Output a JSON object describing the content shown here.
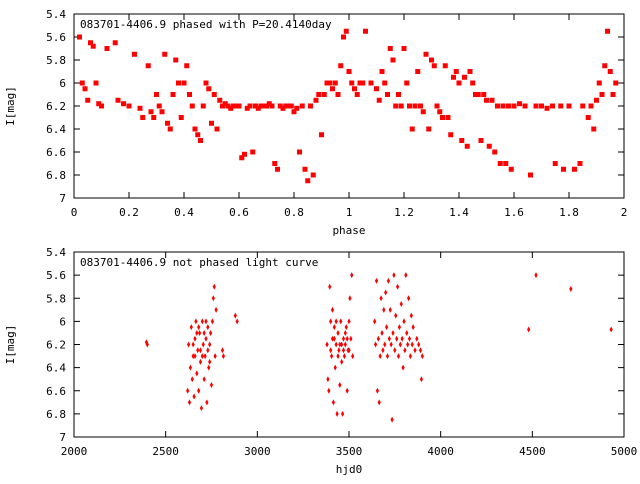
{
  "chart_data": [
    {
      "type": "scatter",
      "title": "083701-4406.9 phased with P=20.4140day",
      "xlabel": "phase",
      "ylabel": "I[mag]",
      "xlim": [
        0,
        2
      ],
      "ylim": [
        5.4,
        7.0
      ],
      "y_inverted": true,
      "xticks": [
        0,
        0.2,
        0.4,
        0.6,
        0.8,
        1,
        1.2,
        1.4,
        1.6,
        1.8,
        2
      ],
      "xtick_labels": [
        "0",
        "0.2",
        "0.4",
        "0.6",
        "0.8",
        "1",
        "1.2",
        "1.4",
        "1.6",
        "1.8",
        "2"
      ],
      "yticks": [
        5.4,
        5.6,
        5.8,
        6.0,
        6.2,
        6.4,
        6.6,
        6.8,
        7.0
      ],
      "ytick_labels": [
        "5.4",
        "5.6",
        "5.8",
        "6",
        "6.2",
        "6.4",
        "6.6",
        "6.8",
        "7"
      ],
      "grid": false,
      "marker_color": "#ff0000",
      "marker": "square",
      "points": [
        [
          0.02,
          5.6
        ],
        [
          0.03,
          6.0
        ],
        [
          0.04,
          6.05
        ],
        [
          0.05,
          6.15
        ],
        [
          0.06,
          5.65
        ],
        [
          0.07,
          5.68
        ],
        [
          0.08,
          6.0
        ],
        [
          0.09,
          6.18
        ],
        [
          0.1,
          6.2
        ],
        [
          0.12,
          5.7
        ],
        [
          0.15,
          5.65
        ],
        [
          0.16,
          6.15
        ],
        [
          0.18,
          6.18
        ],
        [
          0.2,
          6.2
        ],
        [
          0.22,
          5.75
        ],
        [
          0.24,
          6.22
        ],
        [
          0.25,
          6.3
        ],
        [
          0.27,
          5.85
        ],
        [
          0.28,
          6.25
        ],
        [
          0.29,
          6.3
        ],
        [
          0.3,
          6.1
        ],
        [
          0.31,
          6.2
        ],
        [
          0.32,
          6.25
        ],
        [
          0.33,
          5.75
        ],
        [
          0.34,
          6.35
        ],
        [
          0.35,
          6.4
        ],
        [
          0.36,
          6.1
        ],
        [
          0.37,
          5.8
        ],
        [
          0.38,
          6.0
        ],
        [
          0.39,
          6.3
        ],
        [
          0.4,
          6.0
        ],
        [
          0.41,
          5.85
        ],
        [
          0.42,
          6.1
        ],
        [
          0.43,
          6.2
        ],
        [
          0.44,
          6.4
        ],
        [
          0.45,
          6.45
        ],
        [
          0.46,
          6.5
        ],
        [
          0.47,
          6.2
        ],
        [
          0.48,
          6.0
        ],
        [
          0.49,
          6.05
        ],
        [
          0.5,
          6.35
        ],
        [
          0.51,
          6.1
        ],
        [
          0.52,
          6.4
        ],
        [
          0.53,
          6.15
        ],
        [
          0.54,
          6.2
        ],
        [
          0.55,
          6.18
        ],
        [
          0.56,
          6.2
        ],
        [
          0.57,
          6.22
        ],
        [
          0.58,
          6.2
        ],
        [
          0.59,
          6.2
        ],
        [
          0.6,
          6.2
        ],
        [
          0.61,
          6.65
        ],
        [
          0.62,
          6.62
        ],
        [
          0.63,
          6.22
        ],
        [
          0.64,
          6.2
        ],
        [
          0.65,
          6.6
        ],
        [
          0.66,
          6.2
        ],
        [
          0.67,
          6.22
        ],
        [
          0.68,
          6.2
        ],
        [
          0.69,
          6.2
        ],
        [
          0.7,
          6.2
        ],
        [
          0.71,
          6.18
        ],
        [
          0.72,
          6.2
        ],
        [
          0.73,
          6.7
        ],
        [
          0.74,
          6.75
        ],
        [
          0.75,
          6.2
        ],
        [
          0.76,
          6.22
        ],
        [
          0.77,
          6.2
        ],
        [
          0.78,
          6.2
        ],
        [
          0.79,
          6.2
        ],
        [
          0.8,
          6.25
        ],
        [
          0.81,
          6.22
        ],
        [
          0.82,
          6.6
        ],
        [
          0.83,
          6.2
        ],
        [
          0.84,
          6.75
        ],
        [
          0.85,
          6.85
        ],
        [
          0.86,
          6.2
        ],
        [
          0.87,
          6.8
        ],
        [
          0.88,
          6.15
        ],
        [
          0.89,
          6.1
        ],
        [
          0.9,
          6.45
        ],
        [
          0.91,
          6.1
        ],
        [
          0.92,
          6.0
        ],
        [
          0.93,
          6.0
        ],
        [
          0.94,
          6.05
        ],
        [
          0.95,
          6.0
        ],
        [
          0.96,
          6.1
        ],
        [
          0.97,
          5.85
        ],
        [
          0.98,
          5.6
        ],
        [
          0.99,
          5.55
        ],
        [
          1.0,
          5.9
        ],
        [
          1.01,
          6.0
        ],
        [
          1.02,
          6.05
        ],
        [
          1.03,
          6.1
        ],
        [
          1.04,
          6.0
        ],
        [
          1.05,
          6.0
        ],
        [
          1.06,
          5.55
        ],
        [
          1.08,
          6.0
        ],
        [
          1.1,
          6.05
        ],
        [
          1.11,
          6.15
        ],
        [
          1.12,
          5.9
        ],
        [
          1.13,
          6.0
        ],
        [
          1.14,
          6.1
        ],
        [
          1.15,
          5.7
        ],
        [
          1.16,
          5.8
        ],
        [
          1.17,
          6.2
        ],
        [
          1.18,
          6.1
        ],
        [
          1.19,
          6.2
        ],
        [
          1.2,
          5.7
        ],
        [
          1.21,
          6.0
        ],
        [
          1.22,
          6.2
        ],
        [
          1.23,
          6.4
        ],
        [
          1.24,
          6.2
        ],
        [
          1.25,
          5.9
        ],
        [
          1.26,
          6.2
        ],
        [
          1.27,
          6.25
        ],
        [
          1.28,
          5.75
        ],
        [
          1.29,
          6.4
        ],
        [
          1.3,
          5.8
        ],
        [
          1.31,
          5.85
        ],
        [
          1.32,
          6.2
        ],
        [
          1.33,
          6.25
        ],
        [
          1.34,
          6.3
        ],
        [
          1.35,
          5.85
        ],
        [
          1.36,
          6.3
        ],
        [
          1.37,
          6.45
        ],
        [
          1.38,
          5.95
        ],
        [
          1.39,
          5.9
        ],
        [
          1.4,
          6.0
        ],
        [
          1.41,
          6.5
        ],
        [
          1.42,
          5.95
        ],
        [
          1.43,
          6.55
        ],
        [
          1.44,
          5.9
        ],
        [
          1.45,
          6.0
        ],
        [
          1.46,
          6.1
        ],
        [
          1.47,
          6.1
        ],
        [
          1.48,
          6.5
        ],
        [
          1.49,
          6.1
        ],
        [
          1.5,
          6.15
        ],
        [
          1.51,
          6.55
        ],
        [
          1.52,
          6.15
        ],
        [
          1.53,
          6.6
        ],
        [
          1.54,
          6.2
        ],
        [
          1.55,
          6.7
        ],
        [
          1.56,
          6.2
        ],
        [
          1.57,
          6.7
        ],
        [
          1.58,
          6.2
        ],
        [
          1.59,
          6.75
        ],
        [
          1.6,
          6.2
        ],
        [
          1.62,
          6.18
        ],
        [
          1.64,
          6.2
        ],
        [
          1.66,
          6.8
        ],
        [
          1.68,
          6.2
        ],
        [
          1.7,
          6.2
        ],
        [
          1.72,
          6.22
        ],
        [
          1.74,
          6.2
        ],
        [
          1.75,
          6.7
        ],
        [
          1.77,
          6.2
        ],
        [
          1.78,
          6.75
        ],
        [
          1.8,
          6.2
        ],
        [
          1.82,
          6.75
        ],
        [
          1.84,
          6.7
        ],
        [
          1.85,
          6.2
        ],
        [
          1.87,
          6.3
        ],
        [
          1.88,
          6.2
        ],
        [
          1.89,
          6.4
        ],
        [
          1.9,
          6.15
        ],
        [
          1.91,
          6.0
        ],
        [
          1.92,
          6.1
        ],
        [
          1.93,
          5.85
        ],
        [
          1.94,
          5.55
        ],
        [
          1.95,
          5.9
        ],
        [
          1.96,
          6.1
        ],
        [
          1.97,
          6.0
        ]
      ]
    },
    {
      "type": "scatter",
      "title": "083701-4406.9 not phased light curve",
      "xlabel": "hjd0",
      "ylabel": "I[mag]",
      "xlim": [
        2000,
        5000
      ],
      "ylim": [
        5.4,
        7.0
      ],
      "y_inverted": true,
      "xticks": [
        2000,
        2500,
        3000,
        3500,
        4000,
        4500,
        5000
      ],
      "xtick_labels": [
        "2000",
        "2500",
        "3000",
        "3500",
        "4000",
        "4500",
        "5000"
      ],
      "yticks": [
        5.4,
        5.6,
        5.8,
        6.0,
        6.2,
        6.4,
        6.6,
        6.8,
        7.0
      ],
      "ytick_labels": [
        "5.4",
        "5.6",
        "5.8",
        "6",
        "6.2",
        "6.4",
        "6.6",
        "6.8",
        "7"
      ],
      "grid": false,
      "marker_color": "#ff0000",
      "marker": "diamond",
      "points": [
        [
          2395,
          6.18
        ],
        [
          2400,
          6.2
        ],
        [
          2620,
          6.6
        ],
        [
          2625,
          6.2
        ],
        [
          2630,
          6.7
        ],
        [
          2635,
          6.4
        ],
        [
          2640,
          6.05
        ],
        [
          2645,
          6.5
        ],
        [
          2650,
          6.3
        ],
        [
          2655,
          6.65
        ],
        [
          2660,
          6.15
        ],
        [
          2665,
          6.0
        ],
        [
          2670,
          6.45
        ],
        [
          2675,
          6.25
        ],
        [
          2680,
          6.6
        ],
        [
          2685,
          6.1
        ],
        [
          2690,
          6.35
        ],
        [
          2695,
          6.75
        ],
        [
          2700,
          6.0
        ],
        [
          2705,
          6.2
        ],
        [
          2710,
          6.5
        ],
        [
          2715,
          6.3
        ],
        [
          2720,
          6.15
        ],
        [
          2725,
          6.7
        ],
        [
          2730,
          6.05
        ],
        [
          2735,
          6.4
        ],
        [
          2740,
          6.2
        ],
        [
          2745,
          6.1
        ],
        [
          2750,
          6.55
        ],
        [
          2755,
          6.0
        ],
        [
          2760,
          5.8
        ],
        [
          2765,
          5.7
        ],
        [
          2770,
          6.3
        ],
        [
          2775,
          5.9
        ],
        [
          2680,
          6.05
        ],
        [
          2690,
          6.25
        ],
        [
          2700,
          6.3
        ],
        [
          2710,
          6.1
        ],
        [
          2720,
          6.0
        ],
        [
          2730,
          6.25
        ],
        [
          2740,
          6.35
        ],
        [
          2650,
          6.2
        ],
        [
          2660,
          6.3
        ],
        [
          2670,
          6.1
        ],
        [
          2810,
          6.25
        ],
        [
          2815,
          6.3
        ],
        [
          2880,
          5.95
        ],
        [
          2890,
          6.0
        ],
        [
          3380,
          6.2
        ],
        [
          3385,
          6.5
        ],
        [
          3390,
          6.6
        ],
        [
          3395,
          5.7
        ],
        [
          3400,
          6.0
        ],
        [
          3405,
          6.3
        ],
        [
          3410,
          6.15
        ],
        [
          3415,
          6.7
        ],
        [
          3420,
          6.05
        ],
        [
          3425,
          6.4
        ],
        [
          3430,
          6.2
        ],
        [
          3435,
          6.8
        ],
        [
          3440,
          6.1
        ],
        [
          3445,
          6.25
        ],
        [
          3450,
          6.55
        ],
        [
          3455,
          6.0
        ],
        [
          3460,
          6.35
        ],
        [
          3465,
          6.8
        ],
        [
          3470,
          6.15
        ],
        [
          3475,
          6.3
        ],
        [
          3480,
          6.2
        ],
        [
          3485,
          6.05
        ],
        [
          3490,
          6.6
        ],
        [
          3495,
          6.25
        ],
        [
          3500,
          6.0
        ],
        [
          3505,
          5.8
        ],
        [
          3510,
          6.15
        ],
        [
          3515,
          5.6
        ],
        [
          3520,
          6.3
        ],
        [
          3400,
          6.25
        ],
        [
          3420,
          6.15
        ],
        [
          3440,
          6.3
        ],
        [
          3460,
          6.2
        ],
        [
          3480,
          6.1
        ],
        [
          3500,
          6.25
        ],
        [
          3410,
          5.9
        ],
        [
          3430,
          6.0
        ],
        [
          3450,
          6.2
        ],
        [
          3470,
          6.25
        ],
        [
          3490,
          6.15
        ],
        [
          3640,
          6.0
        ],
        [
          3645,
          6.2
        ],
        [
          3650,
          5.65
        ],
        [
          3655,
          6.6
        ],
        [
          3660,
          6.15
        ],
        [
          3665,
          6.7
        ],
        [
          3670,
          6.3
        ],
        [
          3675,
          5.8
        ],
        [
          3680,
          6.1
        ],
        [
          3685,
          6.25
        ],
        [
          3690,
          5.9
        ],
        [
          3695,
          6.2
        ],
        [
          3700,
          5.75
        ],
        [
          3705,
          6.05
        ],
        [
          3710,
          6.3
        ],
        [
          3715,
          5.65
        ],
        [
          3720,
          6.15
        ],
        [
          3725,
          5.9
        ],
        [
          3730,
          6.2
        ],
        [
          3735,
          6.85
        ],
        [
          3740,
          6.1
        ],
        [
          3745,
          5.6
        ],
        [
          3750,
          6.25
        ],
        [
          3755,
          5.95
        ],
        [
          3760,
          6.15
        ],
        [
          3765,
          5.7
        ],
        [
          3770,
          6.3
        ],
        [
          3775,
          6.05
        ],
        [
          3780,
          6.2
        ],
        [
          3785,
          5.85
        ],
        [
          3790,
          6.15
        ],
        [
          3795,
          6.4
        ],
        [
          3800,
          6.0
        ],
        [
          3805,
          6.25
        ],
        [
          3810,
          5.6
        ],
        [
          3815,
          6.1
        ],
        [
          3820,
          6.2
        ],
        [
          3825,
          5.8
        ],
        [
          3830,
          6.15
        ],
        [
          3835,
          6.3
        ],
        [
          3840,
          5.95
        ],
        [
          3845,
          6.2
        ],
        [
          3850,
          6.05
        ],
        [
          3860,
          6.25
        ],
        [
          3870,
          6.15
        ],
        [
          3880,
          6.2
        ],
        [
          3890,
          6.25
        ],
        [
          3895,
          6.5
        ],
        [
          3900,
          6.3
        ],
        [
          4480,
          6.07
        ],
        [
          4520,
          5.6
        ],
        [
          4710,
          5.72
        ],
        [
          4930,
          6.07
        ]
      ]
    }
  ]
}
